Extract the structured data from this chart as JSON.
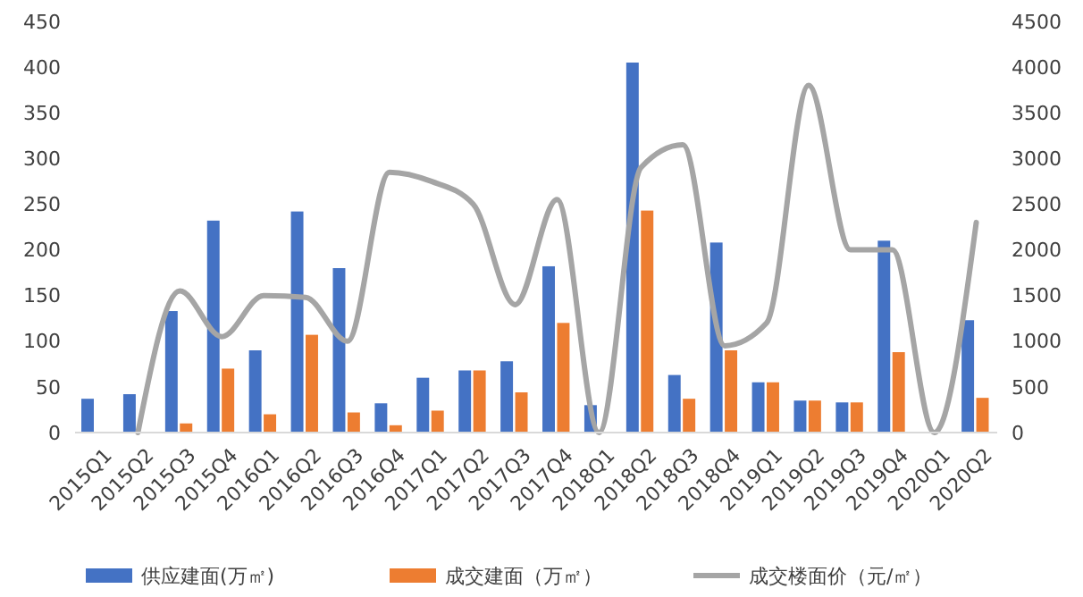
{
  "chart_data": {
    "type": "bar",
    "categories": [
      "2015Q1",
      "2015Q2",
      "2015Q3",
      "2015Q4",
      "2016Q1",
      "2016Q2",
      "2016Q3",
      "2016Q4",
      "2017Q1",
      "2017Q2",
      "2017Q3",
      "2017Q4",
      "2018Q1",
      "2018Q2",
      "2018Q3",
      "2018Q4",
      "2019Q1",
      "2019Q2",
      "2019Q3",
      "2019Q4",
      "2020Q1",
      "2020Q2"
    ],
    "series": [
      {
        "name": "供应建面(万㎡)",
        "color": "#4472c4",
        "values": [
          37,
          42,
          133,
          232,
          90,
          242,
          180,
          32,
          60,
          68,
          78,
          182,
          30,
          405,
          63,
          208,
          55,
          35,
          33,
          210,
          0,
          123
        ]
      },
      {
        "name": "成交建面（万㎡）",
        "color": "#ed7d31",
        "values": [
          0,
          0,
          10,
          70,
          20,
          107,
          22,
          8,
          24,
          68,
          44,
          120,
          0,
          243,
          37,
          90,
          55,
          35,
          33,
          88,
          0,
          38
        ]
      },
      {
        "name": "成交楼面价（元/㎡）",
        "color": "#a5a5a5",
        "type": "line",
        "axis": "y2",
        "values": [
          null,
          0,
          1550,
          1050,
          1500,
          1480,
          1000,
          2850,
          2750,
          2500,
          1400,
          2550,
          0,
          2900,
          3150,
          950,
          1200,
          3800,
          2000,
          2000,
          0,
          2300
        ]
      }
    ],
    "ylim": [
      0,
      450
    ],
    "yticks": [
      0,
      50,
      100,
      150,
      200,
      250,
      300,
      350,
      400,
      450
    ],
    "y2lim": [
      0,
      4500
    ],
    "y2ticks": [
      0,
      500,
      1000,
      1500,
      2000,
      2500,
      3000,
      3500,
      4000,
      4500
    ],
    "grid": false,
    "legend": "bottom"
  }
}
